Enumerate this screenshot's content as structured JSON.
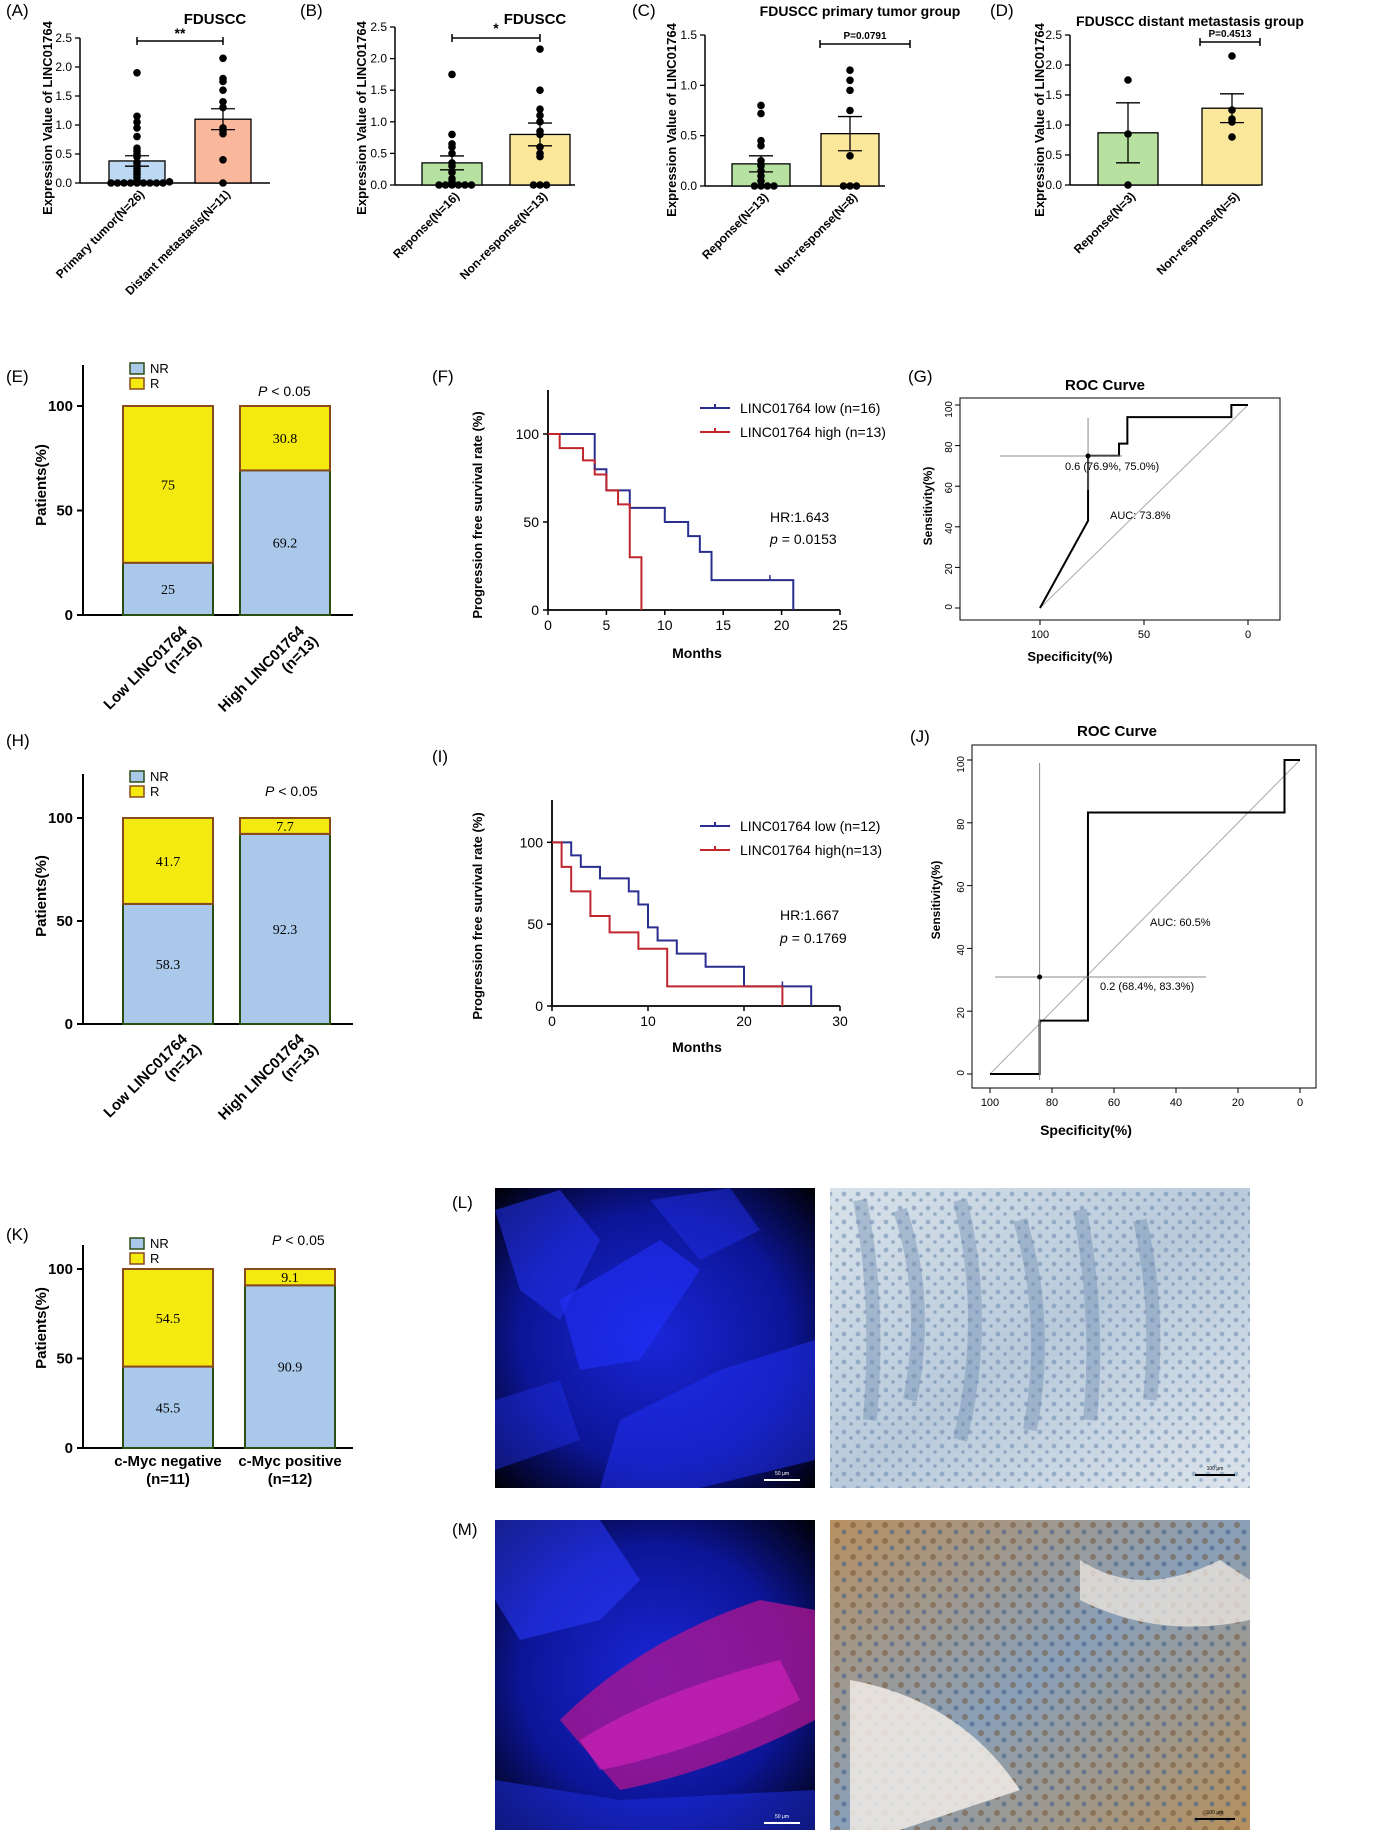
{
  "colors": {
    "green": "#b7e1a1",
    "orange": "#f9b79b",
    "yellowFill": "#fbe79a",
    "blueFill": "#b4d2f0",
    "barYellow": "#f4ea10",
    "barBlue": "#a9c8ea",
    "barEdge": "#2b4f12",
    "barEdgeTop": "#8a4a1e",
    "kmLow": "#2a2f8f",
    "kmHigh": "#c0262c"
  },
  "panels": {
    "A": {
      "letter": "(A)",
      "title": "FDUSCC",
      "ylabel": "Expression Value of  LINC01764",
      "sig": "**"
    },
    "B": {
      "letter": "(B)",
      "title": "FDUSCC",
      "ylabel": "Expression Value of  LINC01764",
      "sig": "*"
    },
    "C": {
      "letter": "(C)",
      "title": "FDUSCC primary tumor group",
      "ylabel": "Expression Value of  LINC01764",
      "sig": "P=0.0791"
    },
    "D": {
      "letter": "(D)",
      "title": "FDUSCC distant metastasis group",
      "ylabel": "Expression Value of  LINC01764",
      "sig": "P=0.4513"
    },
    "E": {
      "letter": "(E)",
      "ylabel": "Patients(%)",
      "pval": "< 0.05",
      "plabel": "P"
    },
    "F": {
      "letter": "(F)",
      "ylabel": "Progression free survival rate (%)",
      "xlabel": "Months",
      "hr": "HR:1.643",
      "pval": "= 0.0153",
      "plabel": "p"
    },
    "G": {
      "letter": "(G)",
      "title": "ROC Curve",
      "xlabel": "Specificity(%)",
      "ylabel": "Sensitivity(%)",
      "point_label": "0.6 (76.9%, 75.0%)",
      "auc": "AUC: 73.8%"
    },
    "H": {
      "letter": "(H)",
      "ylabel": "Patients(%)",
      "pval": "< 0.05",
      "plabel": "P"
    },
    "I": {
      "letter": "(I)",
      "ylabel": "Progression free survival rate (%)",
      "xlabel": "Months",
      "hr": "HR:1.667",
      "pval": "= 0.1769",
      "plabel": "p"
    },
    "J": {
      "letter": "(J)",
      "title": "ROC Curve",
      "xlabel": "Specificity(%)",
      "ylabel": "Sensitivity(%)",
      "point_label": "0.2 (68.4%, 83.3%)",
      "auc": "AUC: 60.5%"
    },
    "K": {
      "letter": "(K)",
      "ylabel": "Patients(%)",
      "pval": "< 0.05",
      "plabel": "P"
    },
    "L": {
      "letter": "(L)",
      "scale_left": "50 μm",
      "scale_right": "100 μm"
    },
    "M": {
      "letter": "(M)",
      "scale_left": "50 μm",
      "scale_right": "100 μm"
    }
  },
  "chart_data": [
    {
      "panel": "A",
      "type": "bar",
      "title": "FDUSCC",
      "ylabel": "Expression Value of  LINC01764",
      "ylim": [
        0,
        2.5
      ],
      "yticks": [
        "0.0",
        "0.5",
        "1.0",
        "1.5",
        "2.0",
        "2.5"
      ],
      "categories": [
        "Primary tumor(N=26)",
        "Distant metastasis(N=11)"
      ],
      "means": [
        0.38,
        1.1
      ],
      "sem": [
        0.09,
        0.18
      ],
      "points": [
        [
          0.0,
          0.0,
          0.0,
          0.0,
          0.0,
          0.0,
          0.0,
          0.0,
          0.0,
          0.02,
          0.05,
          0.1,
          0.15,
          0.2,
          0.25,
          0.3,
          0.35,
          0.45,
          0.5,
          0.55,
          0.6,
          0.8,
          0.95,
          1.05,
          1.15,
          1.9
        ],
        [
          0.0,
          0.4,
          0.85,
          0.9,
          0.95,
          1.3,
          1.4,
          1.6,
          1.75,
          1.8,
          2.15
        ]
      ]
    },
    {
      "panel": "B",
      "type": "bar",
      "title": "FDUSCC",
      "ylabel": "Expression Value of  LINC01764",
      "ylim": [
        0,
        2.5
      ],
      "yticks": [
        "0.0",
        "0.5",
        "1.0",
        "1.5",
        "2.0",
        "2.5"
      ],
      "categories": [
        "Reponse(N=16)",
        "Non-response(N=13)"
      ],
      "means": [
        0.35,
        0.8
      ],
      "sem": [
        0.11,
        0.18
      ],
      "points": [
        [
          0.0,
          0.0,
          0.0,
          0.0,
          0.0,
          0.0,
          0.05,
          0.1,
          0.2,
          0.3,
          0.35,
          0.5,
          0.6,
          0.65,
          0.8,
          1.75
        ],
        [
          0.0,
          0.0,
          0.0,
          0.45,
          0.5,
          0.6,
          0.8,
          0.85,
          1.0,
          1.1,
          1.2,
          1.5,
          2.15
        ]
      ]
    },
    {
      "panel": "C",
      "type": "bar",
      "title": "FDUSCC primary tumor group",
      "ylabel": "Expression Value of  LINC01764",
      "ylim": [
        0,
        1.5
      ],
      "yticks": [
        "0.0",
        "0.5",
        "1.0",
        "1.5"
      ],
      "categories": [
        "Reponse(N=13)",
        "Non-response(N=8)"
      ],
      "means": [
        0.22,
        0.52
      ],
      "sem": [
        0.08,
        0.17
      ],
      "points": [
        [
          0.0,
          0.0,
          0.0,
          0.0,
          0.05,
          0.1,
          0.15,
          0.2,
          0.25,
          0.4,
          0.45,
          0.72,
          0.8
        ],
        [
          0.0,
          0.0,
          0.0,
          0.3,
          0.75,
          0.95,
          1.05,
          1.15
        ]
      ]
    },
    {
      "panel": "D",
      "type": "bar",
      "title": "FDUSCC distant metastasis group",
      "ylabel": "Expression Value of  LINC01764",
      "ylim": [
        0,
        2.5
      ],
      "yticks": [
        "0.0",
        "0.5",
        "1.0",
        "1.5",
        "2.0",
        "2.5"
      ],
      "categories": [
        "Reponse(N=3)",
        "Non-response(N=5)"
      ],
      "means": [
        0.87,
        1.28
      ],
      "sem": [
        0.5,
        0.24
      ],
      "points": [
        [
          0.0,
          0.85,
          1.75
        ],
        [
          0.8,
          1.05,
          1.1,
          1.25,
          2.15
        ]
      ]
    },
    {
      "panel": "E",
      "type": "bar",
      "stacked": true,
      "ylabel": "Patients(%)",
      "ylim": [
        0,
        100
      ],
      "yticks": [
        "0",
        "50",
        "100"
      ],
      "categories": [
        "Low LINC01764 (n=16)",
        "High LINC01764 (n=13)"
      ],
      "legend": [
        "NR",
        "R"
      ],
      "series": [
        {
          "name": "NR",
          "values": [
            25,
            69.2
          ]
        },
        {
          "name": "R",
          "values": [
            75,
            30.8
          ]
        }
      ]
    },
    {
      "panel": "F",
      "type": "line",
      "ylabel": "Progression free survival rate (%)",
      "xlabel": "Months",
      "xlim": [
        0,
        25
      ],
      "ylim": [
        0,
        100
      ],
      "xticks": [
        "0",
        "5",
        "10",
        "15",
        "20",
        "25"
      ],
      "yticks": [
        "0",
        "50",
        "100"
      ],
      "series": [
        {
          "name": "LINC01764 low  (n=16)",
          "x": [
            0,
            4,
            5,
            7,
            10,
            12,
            13,
            14,
            21
          ],
          "y": [
            100,
            80,
            68,
            58,
            50,
            42,
            33,
            17,
            0
          ]
        },
        {
          "name": "LINC01764 high (n=13)",
          "x": [
            0,
            1,
            3,
            4,
            5,
            6,
            7,
            8
          ],
          "y": [
            100,
            92,
            85,
            77,
            68,
            60,
            30,
            0
          ]
        }
      ]
    },
    {
      "panel": "G",
      "type": "line",
      "title": "ROC Curve",
      "xlabel": "Specificity(%)",
      "ylabel": "Sensitivity(%)",
      "xticks": [
        "100",
        "50",
        "0"
      ],
      "yticks": [
        "0",
        "20",
        "40",
        "60",
        "80",
        "100"
      ],
      "series": [
        {
          "name": "ROC",
          "x": [
            100,
            76.9,
            76.9,
            68,
            68,
            62,
            62,
            58,
            58,
            50,
            50,
            8,
            8,
            0
          ],
          "y": [
            0,
            43,
            75,
            75,
            75,
            75,
            81,
            81,
            94,
            94,
            94,
            94,
            100,
            100
          ]
        }
      ]
    },
    {
      "panel": "H",
      "type": "bar",
      "stacked": true,
      "ylabel": "Patients(%)",
      "ylim": [
        0,
        100
      ],
      "yticks": [
        "0",
        "50",
        "100"
      ],
      "categories": [
        "Low LINC01764 (n=12)",
        "High LINC01764 (n=13)"
      ],
      "legend": [
        "NR",
        "R"
      ],
      "series": [
        {
          "name": "NR",
          "values": [
            58.3,
            92.3
          ]
        },
        {
          "name": "R",
          "values": [
            41.7,
            7.7
          ]
        }
      ]
    },
    {
      "panel": "I",
      "type": "line",
      "ylabel": "Progression free survival rate (%)",
      "xlabel": "Months",
      "xlim": [
        0,
        30
      ],
      "ylim": [
        0,
        100
      ],
      "xticks": [
        "0",
        "10",
        "20",
        "30"
      ],
      "yticks": [
        "0",
        "50",
        "100"
      ],
      "series": [
        {
          "name": "LINC01764 low  (n=12)",
          "x": [
            0,
            2,
            3,
            5,
            8,
            9,
            10,
            11,
            13,
            16,
            20,
            27
          ],
          "y": [
            100,
            92,
            85,
            78,
            70,
            62,
            48,
            40,
            32,
            24,
            12,
            0
          ]
        },
        {
          "name": "LINC01764 high(n=13)",
          "x": [
            0,
            1,
            2,
            4,
            6,
            9,
            12,
            24
          ],
          "y": [
            100,
            85,
            70,
            55,
            45,
            35,
            12,
            0
          ]
        }
      ]
    },
    {
      "panel": "J",
      "type": "line",
      "title": "ROC Curve",
      "xlabel": "Specificity(%)",
      "ylabel": "Sensitivity(%)",
      "xticks": [
        "100",
        "80",
        "60",
        "40",
        "20",
        "0"
      ],
      "yticks": [
        "0",
        "20",
        "40",
        "60",
        "80",
        "100"
      ],
      "series": [
        {
          "name": "ROC",
          "x": [
            100,
            84,
            84,
            68.4,
            68.4,
            5,
            5,
            0
          ],
          "y": [
            0,
            0,
            17,
            17,
            83.3,
            83.3,
            100,
            100
          ]
        }
      ]
    },
    {
      "panel": "K",
      "type": "bar",
      "stacked": true,
      "ylabel": "Patients(%)",
      "ylim": [
        0,
        100
      ],
      "yticks": [
        "0",
        "50",
        "100"
      ],
      "categories": [
        "c-Myc negative (n=11)",
        "c-Myc positive (n=12)"
      ],
      "legend": [
        "NR",
        "R"
      ],
      "series": [
        {
          "name": "NR",
          "values": [
            45.5,
            90.9
          ]
        },
        {
          "name": "R",
          "values": [
            54.5,
            9.1
          ]
        }
      ]
    }
  ]
}
